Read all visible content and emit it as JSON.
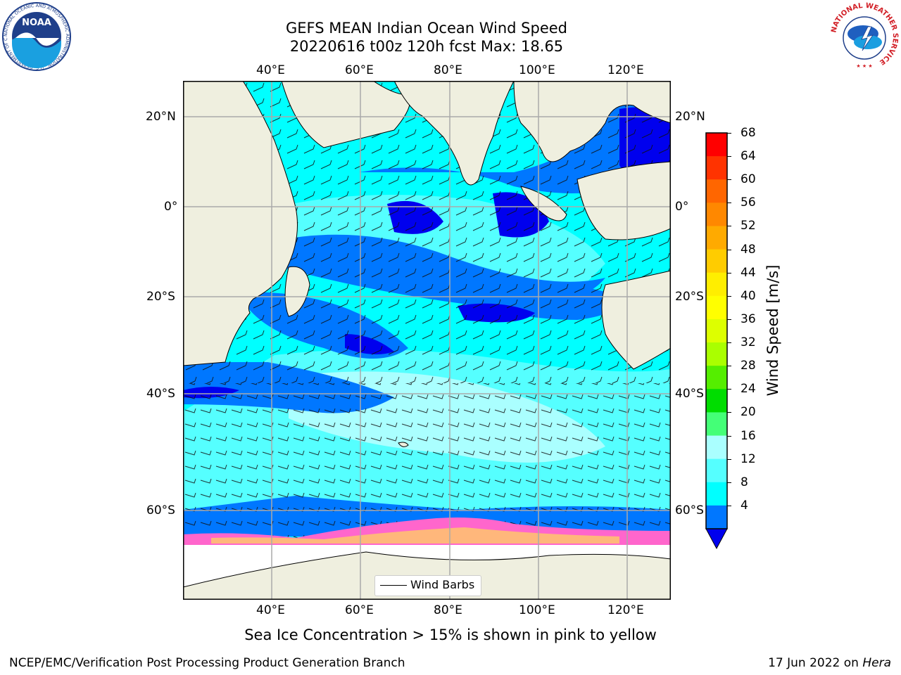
{
  "header": {
    "title_line1": "GEFS MEAN Indian Ocean Wind Speed",
    "title_line2": "20220616 t00z 120h fcst   Max: 18.65",
    "noaa_logo_text": "NOAA",
    "noaa_ring_text": "NATIONAL OCEANIC AND ATMOSPHERIC ADMINISTRATION · U.S. DEPARTMENT OF COMMERCE",
    "nws_ring_text": "NATIONAL WEATHER SERVICE"
  },
  "map": {
    "lon_labels": [
      "40°E",
      "60°E",
      "80°E",
      "100°E",
      "120°E"
    ],
    "lat_labels": [
      "20°N",
      "0°",
      "20°S",
      "40°S",
      "60°S"
    ],
    "legend_label": "Wind Barbs",
    "extent": {
      "lon_min": 20,
      "lon_max": 130,
      "lat_min": -70,
      "lat_max": 28
    }
  },
  "colorbar": {
    "label": "Wind Speed [m/s]",
    "ticks": [
      "68",
      "64",
      "60",
      "56",
      "52",
      "48",
      "44",
      "40",
      "36",
      "32",
      "28",
      "24",
      "20",
      "16",
      "12",
      "8",
      "4"
    ],
    "colors": [
      "#ff0000",
      "#ff3300",
      "#ff6600",
      "#ff8800",
      "#ffaa00",
      "#ffcc00",
      "#ffee00",
      "#ffff00",
      "#ddff00",
      "#aaff00",
      "#55ee00",
      "#00dd00",
      "#44ff77",
      "#aaffff",
      "#55ffff",
      "#00ffff",
      "#0077ff"
    ],
    "extend_color": "#0000ee"
  },
  "caption": "Sea Ice Concentration > 15% is shown in pink to yellow",
  "footer": {
    "left": "NCEP/EMC/Verification Post Processing Product Generation Branch",
    "right_prefix": "17 Jun 2022 on ",
    "right_host": "Hera"
  }
}
